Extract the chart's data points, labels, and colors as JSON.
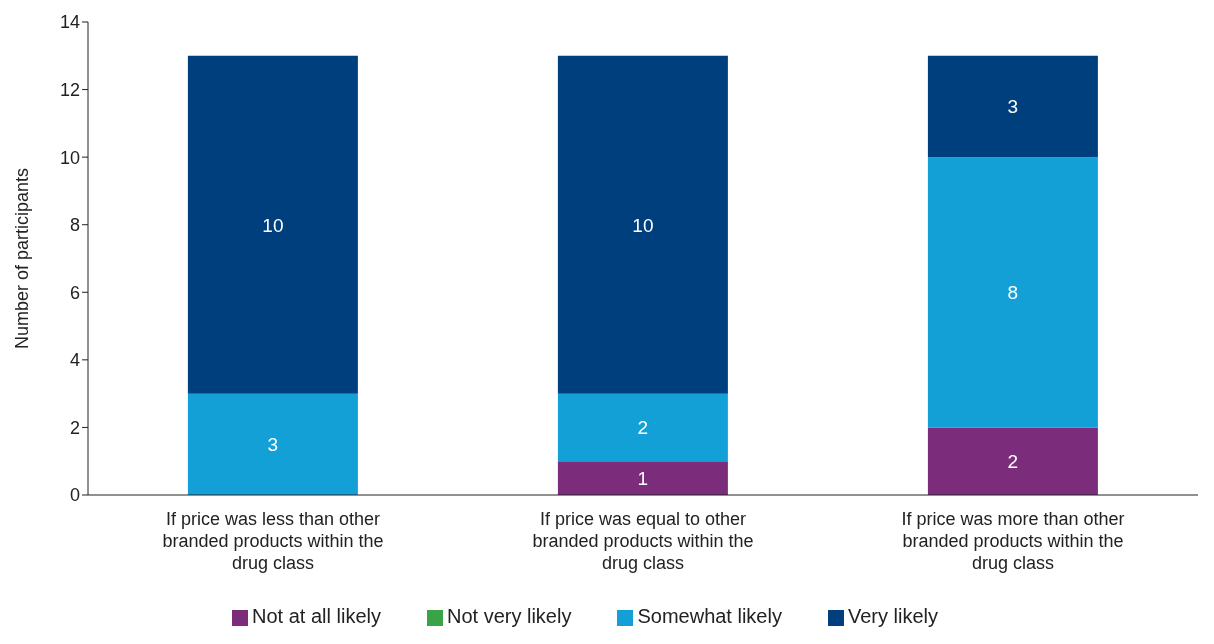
{
  "chart_data": {
    "type": "bar",
    "stacked": true,
    "ylabel": "Number of participants",
    "categories": [
      "If price was less than other branded products within the drug class",
      "If price was equal to other branded products within the drug class",
      "If price was more than other branded products within the drug class"
    ],
    "series": [
      {
        "name": "Not at all likely",
        "color": "#7b2d7b",
        "values": [
          0,
          1,
          2
        ],
        "value_labels": [
          null,
          "1",
          "2"
        ]
      },
      {
        "name": "Not very likely",
        "color": "#3aa346",
        "values": [
          0,
          0,
          0
        ],
        "value_labels": [
          null,
          null,
          null
        ]
      },
      {
        "name": "Somewhat likely",
        "color": "#12a0d7",
        "values": [
          3,
          2,
          8
        ],
        "value_labels": [
          "3",
          "2",
          "8"
        ]
      },
      {
        "name": "Very likely",
        "color": "#003f7d",
        "values": [
          10,
          10,
          3
        ],
        "value_labels": [
          "10",
          "10",
          "3"
        ]
      }
    ],
    "ylim": [
      0,
      14
    ],
    "yticks": [
      0,
      2,
      4,
      6,
      8,
      10,
      12,
      14
    ],
    "grid": false,
    "legend": "bottom"
  }
}
